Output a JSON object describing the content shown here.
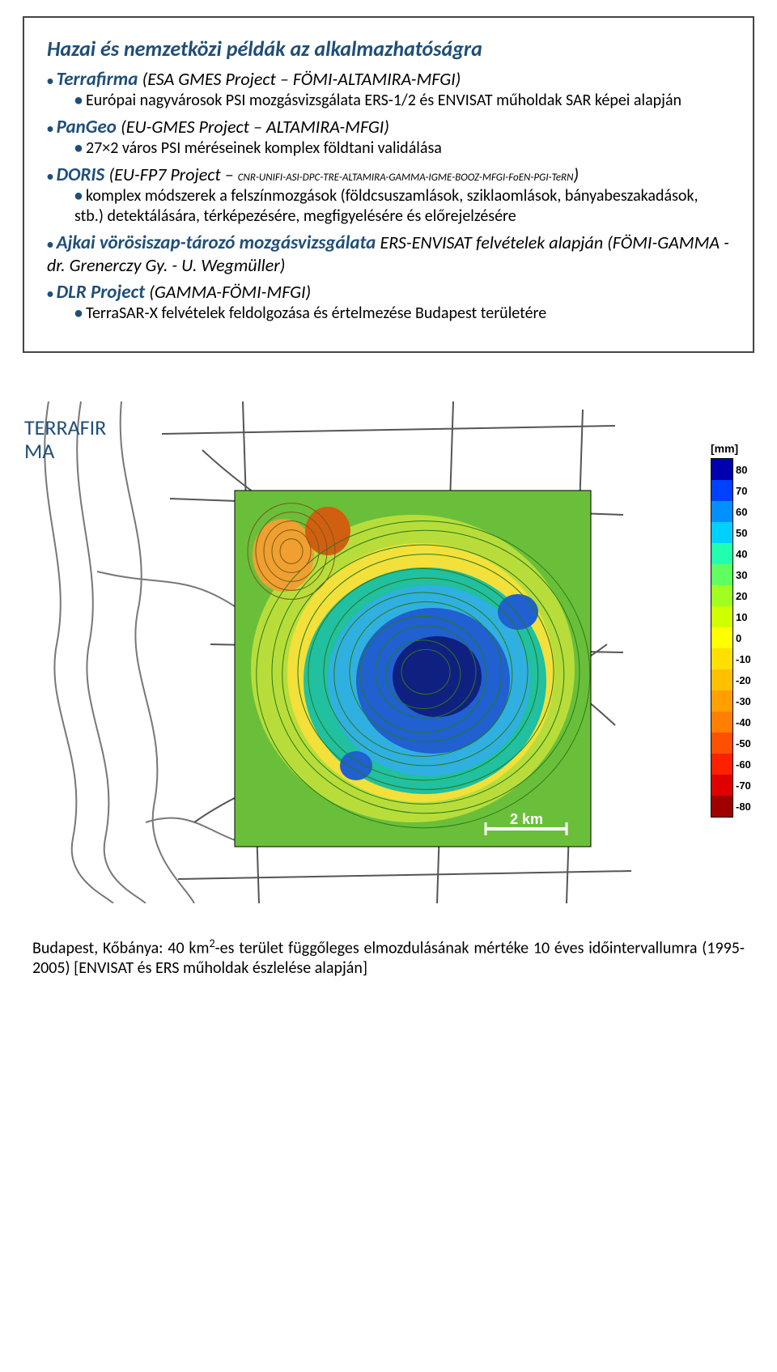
{
  "slide1": {
    "title": "Hazai és nemzetközi példák az alkalmazhatóságra",
    "items": [
      {
        "name": "Terrafirma",
        "desc": "(ESA GMES Project – FÖMI-ALTAMIRA-MFGI)",
        "subs": [
          {
            "text": "Európai nagyvárosok PSI mozgásvizsgálata ERS-1/2 és ENVISAT műholdak SAR képei alapján"
          }
        ]
      },
      {
        "name": "PanGeo",
        "desc": "(EU-GMES Project – ALTAMIRA-MFGI)",
        "subs": [
          {
            "text": "27×2 város PSI méréseinek komplex földtani validálása"
          }
        ]
      },
      {
        "name": "DORIS",
        "desc_pre": "(EU-FP7 Project – ",
        "desc_small": "CNR-UNIFI-ASI-DPC-TRE-ALTAMIRA-GAMMA-IGME-BOOZ-MFGI-FoEN-PGI-TeRN",
        "desc_post": ")",
        "subs": [
          {
            "text": "komplex módszerek a felszínmozgások (földcsuszamlások, sziklaomlások, bányabeszakadások, stb.) detektálására, térképezésére, megfigyelésére és előrejelzésére"
          }
        ]
      },
      {
        "name": "Ajkai vörösiszap-tározó mozgásvizsgálata",
        "desc": "ERS-ENVISAT felvételek alapján (FÖMI-GAMMA - dr. Grenerczy Gy. - U. Wegmüller)"
      },
      {
        "name": "DLR Project",
        "desc": "(GAMMA-FÖMI-MFGI)",
        "subs": [
          {
            "text": "TerraSAR-X felvételek feldolgozása és értelmezése Budapest területére"
          }
        ]
      }
    ]
  },
  "slide2": {
    "label": "TERRAFIR\nMA",
    "legend_title": "[mm]",
    "legend": [
      {
        "v": "80",
        "c": "#0000b0"
      },
      {
        "v": "70",
        "c": "#0040ff"
      },
      {
        "v": "60",
        "c": "#0090ff"
      },
      {
        "v": "50",
        "c": "#00d0ff"
      },
      {
        "v": "40",
        "c": "#20ffb0"
      },
      {
        "v": "30",
        "c": "#60ff60"
      },
      {
        "v": "20",
        "c": "#a0ff20"
      },
      {
        "v": "10",
        "c": "#d0ff00"
      },
      {
        "v": "0",
        "c": "#ffff00"
      },
      {
        "v": "-10",
        "c": "#ffe000"
      },
      {
        "v": "-20",
        "c": "#ffc000"
      },
      {
        "v": "-30",
        "c": "#ffa000"
      },
      {
        "v": "-40",
        "c": "#ff8000"
      },
      {
        "v": "-50",
        "c": "#ff5000"
      },
      {
        "v": "-60",
        "c": "#ff2000"
      },
      {
        "v": "-70",
        "c": "#e00000"
      },
      {
        "v": "-80",
        "c": "#a00000"
      }
    ],
    "scale_text": "2 km",
    "caption_pre": "Budapest, Kőbánya: 40 km",
    "caption_sup": "2",
    "caption_post": "-es terület függőleges elmozdulásának mértéke 10 éves időintervallumra (1995-2005) [ENVISAT és ERS műholdak észlelése alapján]",
    "map": {
      "background": "#ffffff",
      "river_stroke": "#777",
      "roads_stroke": "#555",
      "contour_green": "#2a7a1a",
      "contour_brown": "#7a5a1a",
      "inner_colors": {
        "outer_green": "#6abf3a",
        "mid_yelgrn": "#b8dd3a",
        "yellow": "#f3e03a",
        "orange": "#f0a030",
        "dk_orange": "#d06010",
        "teal": "#20c0a0",
        "cyan": "#30b0e0",
        "blue": "#2060d0",
        "dk_blue": "#102080"
      }
    }
  }
}
